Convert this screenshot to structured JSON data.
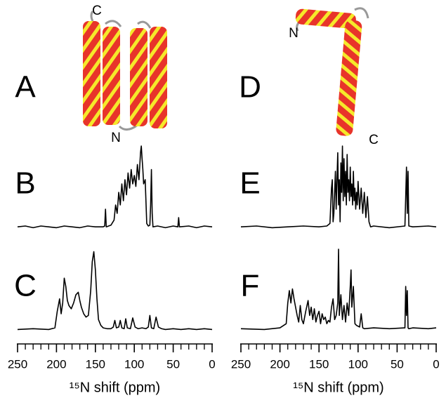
{
  "structures": [
    {
      "panel": "A",
      "labels": [
        "C",
        "N"
      ]
    },
    {
      "panel": "D",
      "labels": [
        "N",
        "C"
      ]
    }
  ],
  "chart_data": [
    {
      "type": "line",
      "panel": "B",
      "color": "#000000",
      "xlim": [
        250,
        0
      ],
      "ylim": [
        0,
        100
      ],
      "x": [
        250,
        240,
        230,
        220,
        210,
        200,
        190,
        180,
        170,
        160,
        150,
        140,
        138,
        137,
        136,
        130,
        126,
        124,
        122,
        120,
        118,
        116,
        114,
        112,
        110,
        108,
        106,
        104,
        102,
        100,
        98,
        96,
        94,
        92,
        91,
        90,
        89,
        88,
        86,
        84,
        82,
        80,
        79,
        78,
        77,
        76,
        70,
        60,
        50,
        44,
        43,
        42,
        30,
        20,
        10,
        0
      ],
      "values": [
        4,
        5,
        3,
        5,
        4,
        3,
        5,
        4,
        3,
        5,
        4,
        4,
        5,
        25,
        4,
        6,
        12,
        30,
        20,
        45,
        30,
        55,
        35,
        60,
        42,
        68,
        50,
        72,
        55,
        65,
        52,
        78,
        60,
        92,
        100,
        85,
        72,
        55,
        60,
        8,
        5,
        6,
        30,
        72,
        20,
        4,
        5,
        3,
        5,
        4,
        15,
        4,
        5,
        3,
        5,
        4
      ]
    },
    {
      "type": "line",
      "panel": "C",
      "color": "#000000",
      "xlim": [
        250,
        0
      ],
      "ylim": [
        0,
        100
      ],
      "x": [
        250,
        230,
        210,
        202,
        199,
        196,
        194,
        192,
        190,
        188,
        186,
        184,
        181,
        178,
        175,
        172,
        170,
        168,
        165,
        162,
        159,
        156,
        154,
        152,
        150,
        148,
        146,
        143,
        140,
        135,
        130,
        127,
        125,
        123,
        120,
        118,
        116,
        113,
        111,
        109,
        105,
        102,
        99,
        95,
        90,
        85,
        82,
        80,
        78,
        75,
        72,
        69,
        65,
        60,
        50,
        40,
        30,
        20,
        10,
        0
      ],
      "values": [
        3,
        4,
        3,
        5,
        25,
        40,
        22,
        35,
        65,
        55,
        38,
        32,
        28,
        35,
        45,
        48,
        38,
        30,
        22,
        18,
        20,
        50,
        85,
        97,
        75,
        40,
        15,
        8,
        5,
        4,
        4,
        6,
        14,
        5,
        6,
        14,
        5,
        4,
        16,
        5,
        4,
        17,
        6,
        4,
        5,
        4,
        6,
        20,
        5,
        4,
        18,
        6,
        4,
        3,
        4,
        3,
        4,
        3,
        4,
        3
      ],
      "xticks": [
        250,
        200,
        150,
        100,
        50,
        0
      ],
      "minor_xticks": [
        240,
        230,
        220,
        210,
        190,
        180,
        170,
        160,
        140,
        130,
        120,
        110,
        90,
        80,
        70,
        60,
        40,
        30,
        20,
        10
      ],
      "xlabel": "¹⁵N shift (ppm)"
    },
    {
      "type": "line",
      "panel": "E",
      "color": "#000000",
      "xlim": [
        250,
        0
      ],
      "ylim": [
        0,
        100
      ],
      "x": [
        250,
        230,
        210,
        190,
        170,
        150,
        140,
        136,
        134,
        133,
        132,
        131,
        129,
        128,
        127,
        126,
        125,
        124,
        123,
        122,
        121,
        120,
        119,
        118,
        117,
        116,
        115,
        114,
        113,
        112,
        111,
        110,
        109,
        108,
        107,
        106,
        105,
        104,
        103,
        102,
        101,
        100,
        98,
        96,
        94,
        92,
        90,
        88,
        86,
        84,
        80,
        60,
        40,
        39,
        38,
        37,
        36,
        35,
        30,
        10,
        0
      ],
      "values": [
        4,
        5,
        3,
        4,
        5,
        4,
        5,
        8,
        50,
        60,
        10,
        20,
        70,
        25,
        60,
        92,
        30,
        60,
        10,
        80,
        45,
        100,
        35,
        85,
        40,
        70,
        30,
        90,
        45,
        60,
        35,
        75,
        40,
        55,
        30,
        70,
        35,
        50,
        25,
        45,
        30,
        58,
        25,
        50,
        20,
        45,
        15,
        40,
        10,
        4,
        5,
        3,
        5,
        40,
        75,
        20,
        70,
        5,
        4,
        5,
        4
      ]
    },
    {
      "type": "line",
      "panel": "F",
      "color": "#000000",
      "xlim": [
        250,
        0
      ],
      "ylim": [
        0,
        100
      ],
      "x": [
        250,
        220,
        200,
        192,
        190,
        188,
        186,
        184,
        182,
        180,
        178,
        176,
        174,
        172,
        170,
        167,
        164,
        162,
        160,
        158,
        156,
        154,
        152,
        150,
        148,
        146,
        144,
        142,
        140,
        138,
        136,
        134,
        132,
        130,
        128,
        126,
        125,
        124,
        122,
        120,
        118,
        116,
        114,
        112,
        110,
        109,
        108,
        106,
        104,
        102,
        98,
        96,
        94,
        92,
        80,
        60,
        40,
        39,
        38,
        37,
        36,
        35,
        30,
        10,
        0
      ],
      "values": [
        4,
        3,
        5,
        10,
        35,
        50,
        35,
        52,
        40,
        30,
        20,
        12,
        32,
        15,
        10,
        25,
        38,
        20,
        30,
        15,
        28,
        12,
        20,
        25,
        10,
        22,
        15,
        18,
        10,
        14,
        12,
        30,
        40,
        15,
        20,
        35,
        100,
        20,
        45,
        15,
        32,
        12,
        35,
        20,
        55,
        75,
        30,
        55,
        10,
        8,
        6,
        22,
        5,
        4,
        5,
        4,
        5,
        55,
        20,
        50,
        5,
        4,
        5,
        4,
        5
      ],
      "xticks": [
        250,
        200,
        150,
        100,
        50,
        0
      ],
      "minor_xticks": [
        240,
        230,
        220,
        210,
        190,
        180,
        170,
        160,
        140,
        130,
        120,
        110,
        90,
        80,
        70,
        60,
        40,
        30,
        20,
        10
      ],
      "xlabel": "¹⁵N shift (ppm)"
    }
  ]
}
